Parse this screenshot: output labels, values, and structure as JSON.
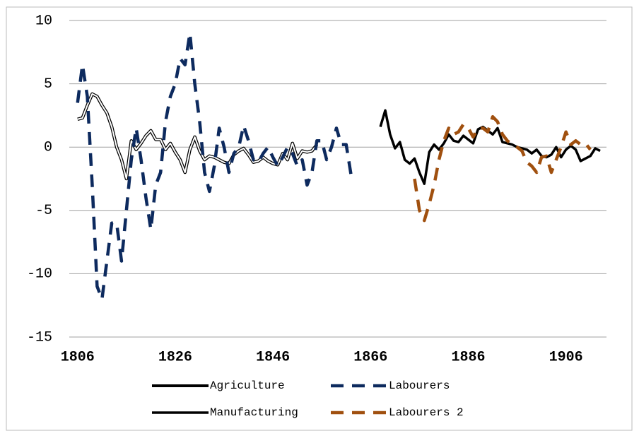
{
  "chart_data": {
    "type": "line",
    "xlim": [
      1804.3,
      1914.3
    ],
    "xticks": [
      1806,
      1826,
      1846,
      1866,
      1886,
      1906
    ],
    "ylim": [
      -15,
      10
    ],
    "yticks": [
      -15,
      -10,
      -5,
      0,
      5,
      10
    ],
    "grid": true,
    "series": [
      {
        "name": "Agriculture",
        "color": "#000000",
        "style": "outline",
        "x": [
          1806,
          1807,
          1808,
          1809,
          1810,
          1811,
          1812,
          1813,
          1814,
          1815,
          1816,
          1817,
          1818,
          1819,
          1820,
          1821,
          1822,
          1823,
          1824,
          1825,
          1826,
          1827,
          1828,
          1829,
          1830,
          1831,
          1832,
          1833,
          1834,
          1835,
          1836,
          1837,
          1838,
          1839,
          1840,
          1841,
          1842,
          1843,
          1844,
          1845,
          1846,
          1847,
          1848,
          1849,
          1850,
          1851,
          1852,
          1853,
          1854,
          1855
        ],
        "values": [
          2.2,
          2.3,
          3.3,
          4.2,
          4.0,
          3.3,
          2.7,
          1.6,
          0.0,
          -1.0,
          -2.5,
          0.5,
          -0.2,
          0.3,
          0.9,
          1.3,
          0.6,
          0.6,
          -0.2,
          0.3,
          -0.4,
          -1.0,
          -2.0,
          -0.2,
          0.8,
          -0.3,
          -1.0,
          -0.7,
          -0.8,
          -1.0,
          -1.2,
          -1.3,
          -0.6,
          -0.3,
          -0.1,
          -0.6,
          -1.2,
          -1.1,
          -0.8,
          -1.1,
          -1.3,
          -1.4,
          -0.5,
          -1.0,
          0.3,
          -0.9,
          -0.3,
          -0.4,
          -0.3,
          0.2
        ]
      },
      {
        "name": "Labourers",
        "color": "#0d2a5e",
        "style": "dash",
        "x": [
          1806,
          1807,
          1808,
          1809,
          1810,
          1811,
          1812,
          1813,
          1814,
          1815,
          1816,
          1817,
          1818,
          1819,
          1820,
          1821,
          1822,
          1823,
          1824,
          1825,
          1826,
          1827,
          1828,
          1829,
          1830,
          1831,
          1832,
          1833,
          1834,
          1835,
          1836,
          1837,
          1838,
          1839,
          1840,
          1841,
          1842,
          1843,
          1844,
          1845,
          1846,
          1847,
          1848,
          1849,
          1850,
          1851,
          1852,
          1853,
          1854,
          1855,
          1856,
          1857,
          1858,
          1859,
          1860,
          1861,
          1862
        ],
        "values": [
          3.5,
          6.5,
          4,
          -3,
          -11,
          -12,
          -9,
          -6,
          -6,
          -9,
          -5,
          -1,
          1.5,
          -1,
          -4,
          -6.5,
          -3,
          -2,
          2,
          4,
          5,
          7,
          6.5,
          9,
          5,
          2,
          -2,
          -3.5,
          -1.5,
          1.5,
          0,
          -2,
          -0.5,
          0,
          1.7,
          0.5,
          -1,
          -1.2,
          -0.5,
          0,
          -0.8,
          -1.5,
          -0.8,
          0,
          -0.5,
          -1.5,
          -1,
          -3,
          -2,
          0.5,
          0.5,
          -1,
          0,
          1.5,
          0.2,
          0.2,
          -2.2
        ]
      },
      {
        "name": "Manufacturing",
        "color": "#000000",
        "style": "solid",
        "x": [
          1868,
          1869,
          1870,
          1871,
          1872,
          1873,
          1874,
          1875,
          1876,
          1877,
          1878,
          1879,
          1880,
          1881,
          1882,
          1883,
          1884,
          1885,
          1886,
          1887,
          1888,
          1889,
          1890,
          1891,
          1892,
          1893,
          1894,
          1895,
          1896,
          1897,
          1898,
          1899,
          1900,
          1901,
          1902,
          1903,
          1904,
          1905,
          1906,
          1907,
          1908,
          1909,
          1910,
          1911,
          1912,
          1913
        ],
        "values": [
          1.6,
          2.9,
          1.0,
          -0.1,
          0.4,
          -1.0,
          -1.3,
          -0.9,
          -2.0,
          -2.9,
          -0.4,
          0.2,
          -0.2,
          0.3,
          1.0,
          0.5,
          0.4,
          0.9,
          0.6,
          0.3,
          1.4,
          1.6,
          1.3,
          1.0,
          1.5,
          0.4,
          0.3,
          0.2,
          0,
          -0.1,
          -0.2,
          -0.5,
          -0.2,
          -0.7,
          -0.8,
          -0.6,
          0,
          -0.8,
          -0.2,
          0.1,
          -0.2,
          -1.1,
          -0.9,
          -0.7,
          -0.1,
          -0.3
        ]
      },
      {
        "name": "Labourers 2",
        "color": "#a0500f",
        "style": "dash",
        "x": [
          1875,
          1876,
          1877,
          1878,
          1879,
          1880,
          1881,
          1882,
          1883,
          1884,
          1885,
          1886,
          1887,
          1888,
          1889,
          1890,
          1891,
          1892,
          1893,
          1894,
          1895,
          1896,
          1897,
          1898,
          1899,
          1900,
          1901,
          1902,
          1903,
          1904,
          1905,
          1906,
          1907,
          1908,
          1909,
          1910,
          1911
        ],
        "values": [
          -2.5,
          -5,
          -5.8,
          -4.5,
          -3,
          -1,
          0.5,
          1.5,
          1.0,
          1.2,
          1.8,
          1.5,
          0.8,
          1.5,
          1.5,
          1.2,
          2.4,
          2.0,
          1.0,
          0.5,
          0.2,
          0,
          -0.3,
          -1.2,
          -1.5,
          -2.0,
          -0.8,
          -0.7,
          -2.0,
          -1.0,
          0,
          1.2,
          0.2,
          0.5,
          0.2,
          0.3,
          -0.2
        ]
      }
    ]
  }
}
